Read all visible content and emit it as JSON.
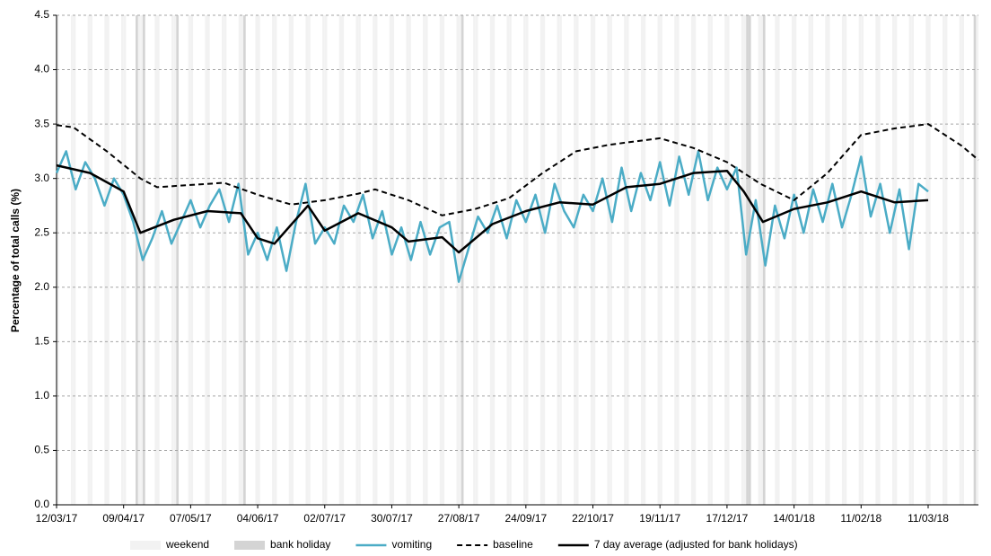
{
  "chart_data": {
    "type": "line",
    "ylabel": "Percentage of total calls (%)",
    "xlim": [
      "2017-03-12",
      "2018-04-01"
    ],
    "ylim": [
      0,
      4.5
    ],
    "yticks": [
      {
        "value": 0,
        "label": "0.0"
      },
      {
        "value": 0.5,
        "label": "0.5"
      },
      {
        "value": 1,
        "label": "1.0"
      },
      {
        "value": 1.5,
        "label": "1.5"
      },
      {
        "value": 2,
        "label": "2.0"
      },
      {
        "value": 2.5,
        "label": "2.5"
      },
      {
        "value": 3,
        "label": "3.0"
      },
      {
        "value": 3.5,
        "label": "3.5"
      },
      {
        "value": 4,
        "label": "4.0"
      },
      {
        "value": 4.5,
        "label": "4.5"
      }
    ],
    "xticks": [
      {
        "value": "2017-03-12",
        "label": "12/03/17"
      },
      {
        "value": "2017-04-09",
        "label": "09/04/17"
      },
      {
        "value": "2017-05-07",
        "label": "07/05/17"
      },
      {
        "value": "2017-06-04",
        "label": "04/06/17"
      },
      {
        "value": "2017-07-02",
        "label": "02/07/17"
      },
      {
        "value": "2017-07-30",
        "label": "30/07/17"
      },
      {
        "value": "2017-08-27",
        "label": "27/08/17"
      },
      {
        "value": "2017-09-24",
        "label": "24/09/17"
      },
      {
        "value": "2017-10-22",
        "label": "22/10/17"
      },
      {
        "value": "2017-11-19",
        "label": "19/11/17"
      },
      {
        "value": "2017-12-17",
        "label": "17/12/17"
      },
      {
        "value": "2018-01-14",
        "label": "14/01/18"
      },
      {
        "value": "2018-02-11",
        "label": "11/02/18"
      },
      {
        "value": "2018-03-11",
        "label": "11/03/18"
      }
    ],
    "grid": true,
    "legend": "bottom",
    "weekend_shading": {
      "name": "weekend",
      "color": "#f2f2f2"
    },
    "bank_holidays": {
      "name": "bank holiday",
      "color": "#d4d4d4",
      "dates": [
        "2017-04-14",
        "2017-04-17",
        "2017-05-01",
        "2017-05-29",
        "2017-08-28",
        "2017-12-25",
        "2017-12-26",
        "2018-01-01",
        "2018-03-30"
      ]
    },
    "series": [
      {
        "name": "vomiting",
        "color": "#4bacc6",
        "width": 2.5,
        "dash": false,
        "x": [
          "2017-03-12",
          "2017-03-16",
          "2017-03-20",
          "2017-03-24",
          "2017-03-28",
          "2017-04-01",
          "2017-04-05",
          "2017-04-09",
          "2017-04-13",
          "2017-04-17",
          "2017-04-21",
          "2017-04-25",
          "2017-04-29",
          "2017-05-03",
          "2017-05-07",
          "2017-05-11",
          "2017-05-15",
          "2017-05-19",
          "2017-05-23",
          "2017-05-27",
          "2017-05-31",
          "2017-06-04",
          "2017-06-08",
          "2017-06-12",
          "2017-06-16",
          "2017-06-20",
          "2017-06-24",
          "2017-06-28",
          "2017-07-02",
          "2017-07-06",
          "2017-07-10",
          "2017-07-14",
          "2017-07-18",
          "2017-07-22",
          "2017-07-26",
          "2017-07-30",
          "2017-08-03",
          "2017-08-07",
          "2017-08-11",
          "2017-08-15",
          "2017-08-19",
          "2017-08-23",
          "2017-08-27",
          "2017-08-31",
          "2017-09-04",
          "2017-09-08",
          "2017-09-12",
          "2017-09-16",
          "2017-09-20",
          "2017-09-24",
          "2017-09-28",
          "2017-10-02",
          "2017-10-06",
          "2017-10-10",
          "2017-10-14",
          "2017-10-18",
          "2017-10-22",
          "2017-10-26",
          "2017-10-30",
          "2017-11-03",
          "2017-11-07",
          "2017-11-11",
          "2017-11-15",
          "2017-11-19",
          "2017-11-23",
          "2017-11-27",
          "2017-12-01",
          "2017-12-05",
          "2017-12-09",
          "2017-12-13",
          "2017-12-17",
          "2017-12-21",
          "2017-12-25",
          "2017-12-29",
          "2018-01-02",
          "2018-01-06",
          "2018-01-10",
          "2018-01-14",
          "2018-01-18",
          "2018-01-22",
          "2018-01-26",
          "2018-01-30",
          "2018-02-03",
          "2018-02-07",
          "2018-02-11",
          "2018-02-15",
          "2018-02-19",
          "2018-02-23",
          "2018-02-27",
          "2018-03-03",
          "2018-03-07",
          "2018-03-11"
        ],
        "values": [
          3.05,
          3.25,
          2.9,
          3.15,
          3.0,
          2.75,
          3.0,
          2.85,
          2.6,
          2.25,
          2.45,
          2.7,
          2.4,
          2.6,
          2.8,
          2.55,
          2.75,
          2.9,
          2.6,
          2.95,
          2.3,
          2.5,
          2.25,
          2.55,
          2.15,
          2.6,
          2.95,
          2.4,
          2.55,
          2.4,
          2.75,
          2.6,
          2.85,
          2.45,
          2.7,
          2.3,
          2.55,
          2.25,
          2.6,
          2.3,
          2.55,
          2.6,
          2.05,
          2.35,
          2.65,
          2.5,
          2.75,
          2.45,
          2.8,
          2.6,
          2.85,
          2.5,
          2.95,
          2.7,
          2.55,
          2.85,
          2.7,
          3.0,
          2.6,
          3.1,
          2.7,
          3.05,
          2.8,
          3.15,
          2.75,
          3.2,
          2.85,
          3.25,
          2.8,
          3.1,
          2.9,
          3.1,
          2.3,
          2.8,
          2.2,
          2.75,
          2.45,
          2.85,
          2.5,
          2.9,
          2.6,
          2.95,
          2.55,
          2.85,
          3.2,
          2.65,
          2.95,
          2.5,
          2.9,
          2.35,
          2.95,
          2.88
        ]
      },
      {
        "name": "baseline",
        "color": "#000000",
        "width": 2,
        "dash": true,
        "x": [
          "2017-03-12",
          "2017-03-19",
          "2017-04-02",
          "2017-04-16",
          "2017-04-23",
          "2017-05-07",
          "2017-05-21",
          "2017-06-04",
          "2017-06-18",
          "2017-07-02",
          "2017-07-16",
          "2017-07-23",
          "2017-08-06",
          "2017-08-20",
          "2017-09-03",
          "2017-09-17",
          "2017-10-01",
          "2017-10-15",
          "2017-10-29",
          "2017-11-19",
          "2017-12-03",
          "2017-12-17",
          "2017-12-31",
          "2018-01-14",
          "2018-01-28",
          "2018-02-11",
          "2018-02-25",
          "2018-03-11",
          "2018-03-25",
          "2018-04-01"
        ],
        "values": [
          3.49,
          3.47,
          3.25,
          3.0,
          2.92,
          2.94,
          2.96,
          2.85,
          2.76,
          2.8,
          2.86,
          2.9,
          2.8,
          2.66,
          2.72,
          2.82,
          3.05,
          3.25,
          3.31,
          3.37,
          3.28,
          3.15,
          2.95,
          2.8,
          3.05,
          3.4,
          3.46,
          3.5,
          3.3,
          3.17
        ]
      },
      {
        "name": "7 day average (adjusted for bank holidays)",
        "color": "#000000",
        "width": 2.5,
        "dash": false,
        "x": [
          "2017-03-12",
          "2017-03-26",
          "2017-04-09",
          "2017-04-16",
          "2017-04-30",
          "2017-05-14",
          "2017-05-28",
          "2017-06-04",
          "2017-06-11",
          "2017-06-25",
          "2017-07-02",
          "2017-07-16",
          "2017-07-30",
          "2017-08-06",
          "2017-08-20",
          "2017-08-27",
          "2017-09-10",
          "2017-09-24",
          "2017-10-08",
          "2017-10-22",
          "2017-11-05",
          "2017-11-19",
          "2017-12-03",
          "2017-12-17",
          "2017-12-24",
          "2018-01-01",
          "2018-01-14",
          "2018-01-28",
          "2018-02-11",
          "2018-02-25",
          "2018-03-11"
        ],
        "values": [
          3.12,
          3.05,
          2.88,
          2.5,
          2.62,
          2.7,
          2.68,
          2.45,
          2.4,
          2.75,
          2.52,
          2.68,
          2.55,
          2.42,
          2.46,
          2.32,
          2.58,
          2.7,
          2.78,
          2.76,
          2.92,
          2.95,
          3.05,
          3.07,
          2.88,
          2.6,
          2.72,
          2.78,
          2.88,
          2.78,
          2.8
        ]
      }
    ]
  }
}
